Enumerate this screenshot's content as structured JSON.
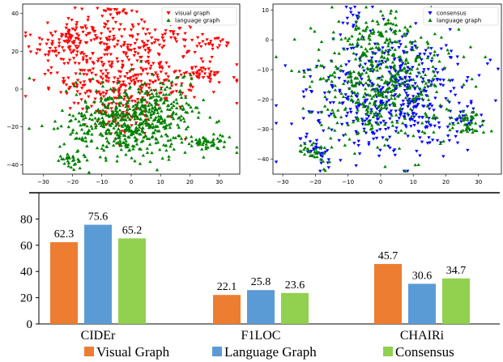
{
  "chart_data": [
    {
      "type": "scatter",
      "xlim": [
        -37,
        37
      ],
      "ylim": [
        -45,
        45
      ],
      "xticks": [
        -30,
        -20,
        -10,
        0,
        10,
        20,
        30
      ],
      "yticks": [
        -40,
        -20,
        0,
        20,
        40
      ],
      "legend_position": "top-right",
      "series": [
        {
          "name": "visual graph",
          "color": "#ff0000",
          "marker": "triangle-down",
          "clusters": [
            {
              "cx": -20,
              "cy": 25,
              "sx": 7,
              "sy": 8,
              "n": 150
            },
            {
              "cx": 5,
              "cy": 25,
              "sx": 12,
              "sy": 5,
              "n": 140
            },
            {
              "cx": 0,
              "cy": 5,
              "sx": 14,
              "sy": 7,
              "n": 230
            },
            {
              "cx": -5,
              "cy": -10,
              "sx": 8,
              "sy": 8,
              "n": 90
            },
            {
              "cx": -6,
              "cy": 41,
              "sx": 3,
              "sy": 1.2,
              "n": 18
            },
            {
              "cx": 28,
              "cy": 25,
              "sx": 3,
              "sy": 1.5,
              "n": 16
            },
            {
              "cx": 25,
              "cy": 8,
              "sx": 4,
              "sy": 2,
              "n": 35
            }
          ]
        },
        {
          "name": "language graph",
          "color": "#008000",
          "marker": "triangle-up",
          "clusters": [
            {
              "cx": 0,
              "cy": -18,
              "sx": 11,
              "sy": 9,
              "n": 520
            },
            {
              "cx": -20,
              "cy": -38,
              "sx": 3,
              "sy": 2.5,
              "n": 30
            },
            {
              "cx": 27,
              "cy": -28,
              "sx": 3,
              "sy": 2,
              "n": 45
            },
            {
              "cx": 12,
              "cy": -5,
              "sx": 8,
              "sy": 6,
              "n": 70
            }
          ]
        }
      ]
    },
    {
      "type": "scatter",
      "xlim": [
        -33,
        37
      ],
      "ylim": [
        -45,
        12
      ],
      "xticks": [
        -30,
        -20,
        -10,
        0,
        10,
        20,
        30
      ],
      "yticks": [
        -40,
        -30,
        -20,
        -10,
        0,
        10
      ],
      "legend_position": "top-right",
      "series": [
        {
          "name": "consensus",
          "color": "#0000ff",
          "marker": "triangle-down",
          "clusters": [
            {
              "cx": 3,
              "cy": -18,
              "sx": 12,
              "sy": 10,
              "n": 480
            },
            {
              "cx": -20,
              "cy": -37,
              "sx": 3,
              "sy": 2.5,
              "n": 30
            },
            {
              "cx": -10,
              "cy": 8,
              "sx": 2,
              "sy": 2,
              "n": 15
            },
            {
              "cx": 25,
              "cy": -27,
              "sx": 3,
              "sy": 2.5,
              "n": 25
            }
          ]
        },
        {
          "name": "language graph",
          "color": "#008000",
          "marker": "triangle-up",
          "clusters": [
            {
              "cx": 0,
              "cy": -15,
              "sx": 11,
              "sy": 10,
              "n": 470
            },
            {
              "cx": -20,
              "cy": -38,
              "sx": 3,
              "sy": 2.5,
              "n": 30
            },
            {
              "cx": 27,
              "cy": -28,
              "sx": 3,
              "sy": 2,
              "n": 45
            },
            {
              "cx": 0,
              "cy": 2,
              "sx": 6,
              "sy": 4,
              "n": 60
            }
          ]
        }
      ]
    },
    {
      "type": "bar",
      "categories": [
        "CIDEr",
        "F1LOC",
        "CHAIRi"
      ],
      "ylim": [
        0,
        100
      ],
      "yticks": [
        0,
        20,
        40,
        60,
        80
      ],
      "legend_position": "bottom",
      "series": [
        {
          "name": "Visual Graph",
          "color": "#ed7d31",
          "values": [
            62.3,
            22.1,
            45.7
          ],
          "labels": [
            "62.3",
            "22.1",
            "45.7"
          ]
        },
        {
          "name": "Language Graph",
          "color": "#5b9bd5",
          "values": [
            75.6,
            25.8,
            30.6
          ],
          "labels": [
            "75.6",
            "25.8",
            "30.6"
          ]
        },
        {
          "name": "Consensus",
          "color": "#92d050",
          "values": [
            65.2,
            23.6,
            34.7
          ],
          "labels": [
            "65.2",
            "23.6",
            "34.7"
          ]
        }
      ]
    }
  ]
}
